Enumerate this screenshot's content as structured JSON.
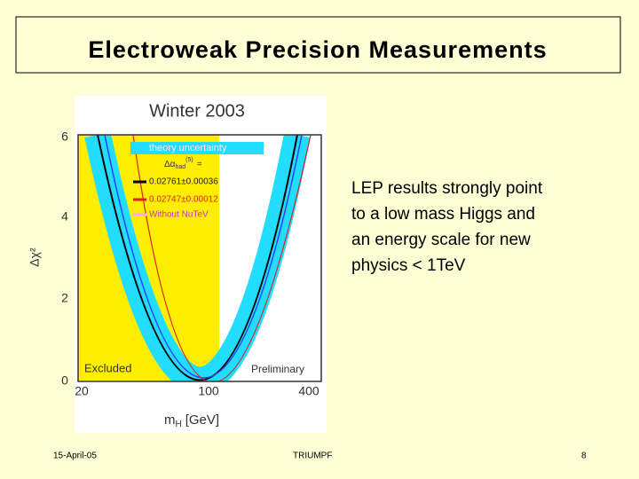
{
  "title": "Electroweak Precision Measurements",
  "figure": {
    "title": "Winter 2003",
    "legend": {
      "band": "theory uncertainty",
      "header": "Δα",
      "header_sub": "had",
      "header_sup": "(5)",
      "header_eq": "=",
      "entries": [
        "0.02761±0.00036",
        "0.02747±0.00012",
        "Without NuTeV"
      ]
    },
    "y_label": "Δχ²",
    "x_label": "m",
    "x_label_sub": "H",
    "x_label_unit": "[GeV]",
    "y_ticks": [
      "0",
      "2",
      "4",
      "6"
    ],
    "x_ticks": [
      "20",
      "100",
      "400"
    ],
    "excluded": "Excluded",
    "preliminary": "Preliminary"
  },
  "body": [
    "LEP results strongly point",
    "to a low mass Higgs and",
    "an energy scale for new",
    "physics < 1TeV"
  ],
  "footer": {
    "date": "15-April-05",
    "org": "TRIUMPF",
    "page": "8"
  }
}
